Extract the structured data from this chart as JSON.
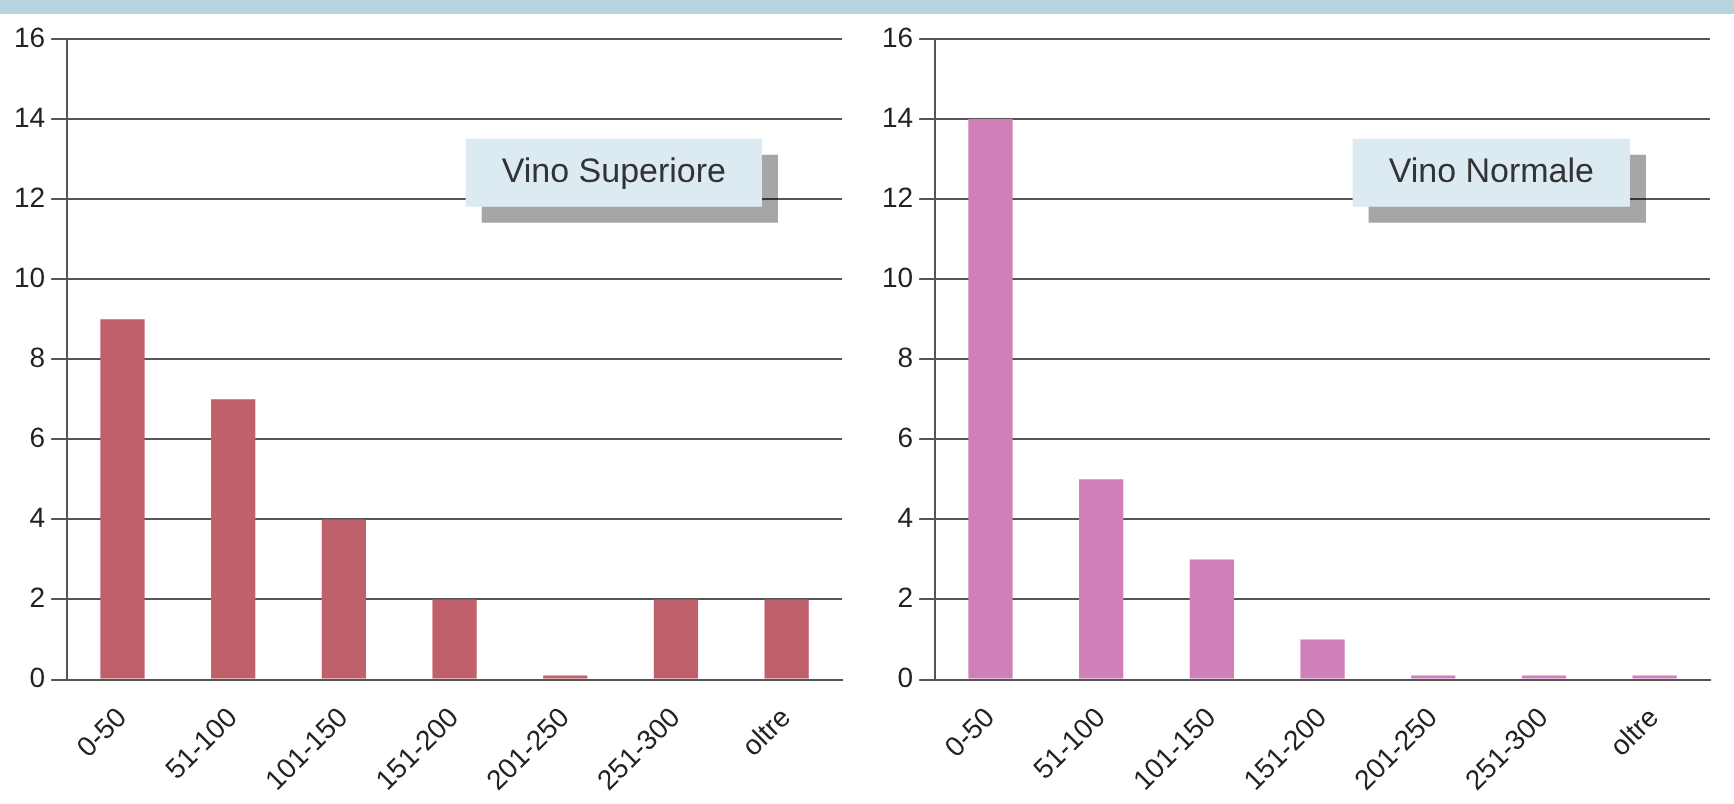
{
  "chart_data": [
    {
      "type": "bar",
      "title": "Vino Superiore",
      "categories": [
        "0-50",
        "51-100",
        "101-150",
        "151-200",
        "201-250",
        "251-300",
        "oltre"
      ],
      "values": [
        9,
        7,
        4,
        2,
        0,
        2,
        2
      ],
      "color": "#c0606a",
      "ylim": [
        0,
        16
      ],
      "yticks": [
        0,
        2,
        4,
        6,
        8,
        10,
        12,
        14,
        16
      ],
      "grid": "y"
    },
    {
      "type": "bar",
      "title": "Vino Normale",
      "categories": [
        "0-50",
        "51-100",
        "101-150",
        "151-200",
        "201-250",
        "251-300",
        "oltre"
      ],
      "values": [
        14,
        5,
        3,
        1,
        0,
        0,
        0
      ],
      "color": "#d080b8",
      "ylim": [
        0,
        16
      ],
      "yticks": [
        0,
        2,
        4,
        6,
        8,
        10,
        12,
        14,
        16
      ],
      "grid": "y"
    }
  ]
}
